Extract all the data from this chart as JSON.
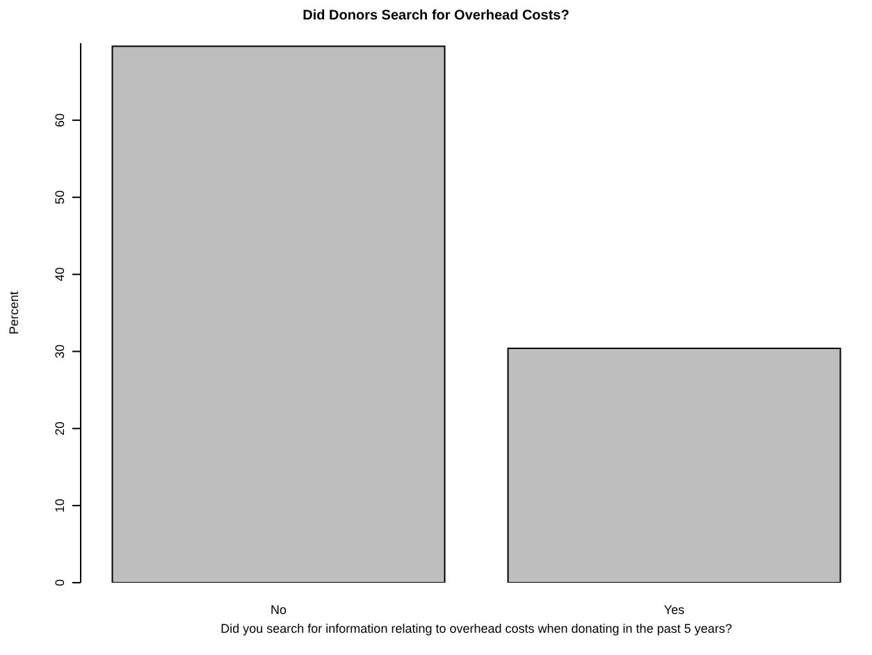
{
  "chart_data": {
    "type": "bar",
    "title": "Did Donors Search for Overhead Costs?",
    "xlabel": "Did you search for information relating to overhead costs when donating in the past 5 years?",
    "ylabel": "Percent",
    "categories": [
      "No",
      "Yes"
    ],
    "values": [
      69.6,
      30.4
    ],
    "color": "#bebebe",
    "ylim": [
      0,
      70
    ],
    "yticks": [
      0,
      10,
      20,
      30,
      40,
      50,
      60
    ],
    "grid": false,
    "legend": false
  }
}
